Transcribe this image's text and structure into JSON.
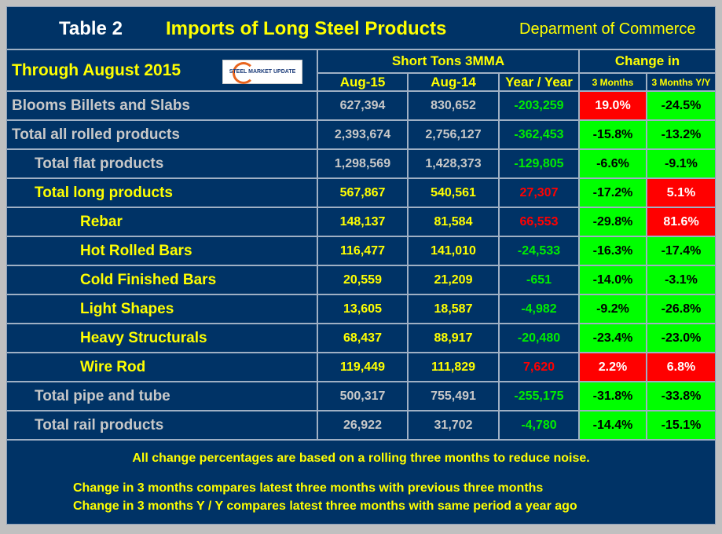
{
  "header": {
    "table_label": "Table 2",
    "title": "Imports of Long Steel Products",
    "source": "Deparment of Commerce",
    "through": "Through August 2015",
    "logo_text": "STEEL MARKET UPDATE"
  },
  "columns": {
    "group1": "Short Tons 3MMA",
    "group2": "Change in",
    "aug15": "Aug-15",
    "aug14": "Aug-14",
    "yoy": "Year / Year",
    "m3": "3 Months",
    "m3yy": "3 Months Y/Y"
  },
  "colors": {
    "background": "#003366",
    "positive": "#ff0000",
    "negative": "#00ff00",
    "label_yellow": "#ffff00",
    "label_gray": "#c8c8c8"
  },
  "rows": [
    {
      "label": "Blooms Billets and Slabs",
      "indent": 0,
      "style": "gray",
      "aug15": "627,394",
      "aug14": "830,652",
      "yoy": "-203,259",
      "yoy_sign": "neg",
      "m3": "19.0%",
      "m3_sign": "pos",
      "m3yy": "-24.5%",
      "m3yy_sign": "neg"
    },
    {
      "label": "Total all rolled products",
      "indent": 0,
      "style": "gray",
      "aug15": "2,393,674",
      "aug14": "2,756,127",
      "yoy": "-362,453",
      "yoy_sign": "neg",
      "m3": "-15.8%",
      "m3_sign": "neg",
      "m3yy": "-13.2%",
      "m3yy_sign": "neg"
    },
    {
      "label": "Total flat products",
      "indent": 1,
      "style": "gray",
      "aug15": "1,298,569",
      "aug14": "1,428,373",
      "yoy": "-129,805",
      "yoy_sign": "neg",
      "m3": "-6.6%",
      "m3_sign": "neg",
      "m3yy": "-9.1%",
      "m3yy_sign": "neg"
    },
    {
      "label": "Total long products",
      "indent": 1,
      "style": "yellow",
      "aug15": "567,867",
      "aug14": "540,561",
      "yoy": "27,307",
      "yoy_sign": "pos",
      "m3": "-17.2%",
      "m3_sign": "neg",
      "m3yy": "5.1%",
      "m3yy_sign": "pos"
    },
    {
      "label": "Rebar",
      "indent": 2,
      "style": "yellow",
      "aug15": "148,137",
      "aug14": "81,584",
      "yoy": "66,553",
      "yoy_sign": "pos",
      "m3": "-29.8%",
      "m3_sign": "neg",
      "m3yy": "81.6%",
      "m3yy_sign": "pos"
    },
    {
      "label": "Hot Rolled Bars",
      "indent": 2,
      "style": "yellow",
      "aug15": "116,477",
      "aug14": "141,010",
      "yoy": "-24,533",
      "yoy_sign": "neg",
      "m3": "-16.3%",
      "m3_sign": "neg",
      "m3yy": "-17.4%",
      "m3yy_sign": "neg"
    },
    {
      "label": "Cold Finished Bars",
      "indent": 2,
      "style": "yellow",
      "aug15": "20,559",
      "aug14": "21,209",
      "yoy": "-651",
      "yoy_sign": "neg",
      "m3": "-14.0%",
      "m3_sign": "neg",
      "m3yy": "-3.1%",
      "m3yy_sign": "neg"
    },
    {
      "label": "Light Shapes",
      "indent": 2,
      "style": "yellow",
      "aug15": "13,605",
      "aug14": "18,587",
      "yoy": "-4,982",
      "yoy_sign": "neg",
      "m3": "-9.2%",
      "m3_sign": "neg",
      "m3yy": "-26.8%",
      "m3yy_sign": "neg"
    },
    {
      "label": "Heavy Structurals",
      "indent": 2,
      "style": "yellow",
      "aug15": "68,437",
      "aug14": "88,917",
      "yoy": "-20,480",
      "yoy_sign": "neg",
      "m3": "-23.4%",
      "m3_sign": "neg",
      "m3yy": "-23.0%",
      "m3yy_sign": "neg"
    },
    {
      "label": "Wire Rod",
      "indent": 2,
      "style": "yellow",
      "aug15": "119,449",
      "aug14": "111,829",
      "yoy": "7,620",
      "yoy_sign": "pos",
      "m3": "2.2%",
      "m3_sign": "pos",
      "m3yy": "6.8%",
      "m3yy_sign": "pos"
    },
    {
      "label": "Total pipe and tube",
      "indent": 1,
      "style": "gray",
      "aug15": "500,317",
      "aug14": "755,491",
      "yoy": "-255,175",
      "yoy_sign": "neg",
      "m3": "-31.8%",
      "m3_sign": "neg",
      "m3yy": "-33.8%",
      "m3yy_sign": "neg"
    },
    {
      "label": "Total rail products",
      "indent": 1,
      "style": "gray",
      "aug15": "26,922",
      "aug14": "31,702",
      "yoy": "-4,780",
      "yoy_sign": "neg",
      "m3": "-14.4%",
      "m3_sign": "neg",
      "m3yy": "-15.1%",
      "m3yy_sign": "neg"
    }
  ],
  "footer": {
    "note1": "All change percentages are based on a rolling three months to reduce noise.",
    "note2": "Change in 3 months compares latest three months with previous three months",
    "note3": "Change in 3 months  Y / Y compares latest three months with same period a year ago"
  }
}
